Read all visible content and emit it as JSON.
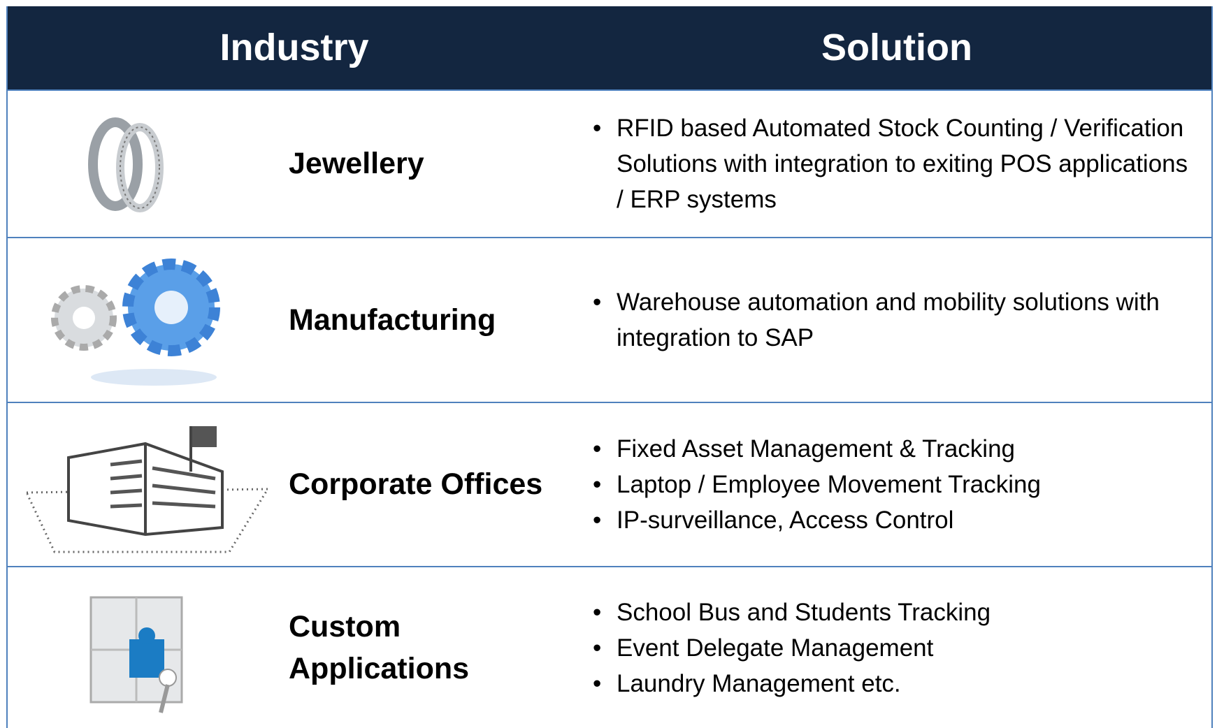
{
  "table": {
    "header": [
      "Industry",
      "Solution"
    ],
    "rows": [
      {
        "industry": "Jewellery",
        "solutions": [
          "RFID based Automated Stock Counting / Verification Solutions with integration to exiting POS applications / ERP systems"
        ]
      },
      {
        "industry": "Manufacturing",
        "solutions": [
          "Warehouse automation and mobility solutions with integration to SAP"
        ]
      },
      {
        "industry": "Corporate Offices",
        "solutions": [
          "Fixed Asset Management & Tracking",
          "Laptop / Employee Movement Tracking",
          "IP-surveillance, Access Control"
        ]
      },
      {
        "industry": "Custom Applications",
        "solutions": [
          "School Bus and Students Tracking",
          "Event Delegate Management",
          "Laundry Management etc."
        ]
      }
    ]
  }
}
